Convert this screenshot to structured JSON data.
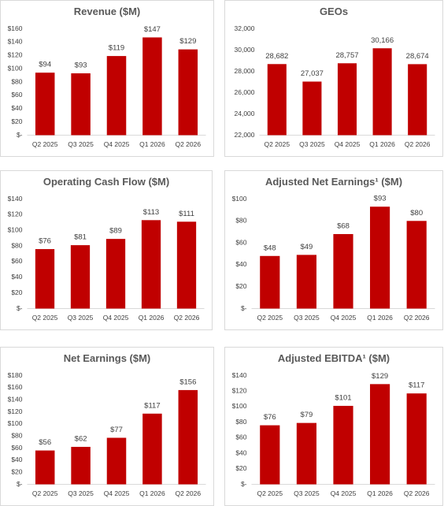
{
  "chart_data": [
    {
      "type": "bar",
      "title": "Revenue ($M)",
      "color": "#c00000",
      "categories": [
        "Q2 2025",
        "Q3 2025",
        "Q4 2025",
        "Q1 2026",
        "Q2 2026"
      ],
      "values": [
        94,
        93,
        119,
        147,
        129
      ],
      "value_labels": [
        "$94",
        "$93",
        "$119",
        "$147",
        "$129"
      ],
      "ylim": [
        0,
        160
      ],
      "yticks": [
        {
          "value": 0,
          "label": "$-"
        },
        {
          "value": 20,
          "label": "$20"
        },
        {
          "value": 40,
          "label": "$40"
        },
        {
          "value": 60,
          "label": "$60"
        },
        {
          "value": 80,
          "label": "$80"
        },
        {
          "value": 100,
          "label": "$100"
        },
        {
          "value": 120,
          "label": "$120"
        },
        {
          "value": 140,
          "label": "$140"
        },
        {
          "value": 160,
          "label": "$160"
        }
      ]
    },
    {
      "type": "bar",
      "title": "GEOs",
      "color": "#c00000",
      "categories": [
        "Q2 2025",
        "Q3 2025",
        "Q4 2025",
        "Q1 2026",
        "Q2 2026"
      ],
      "values": [
        28682,
        27037,
        28757,
        30166,
        28674
      ],
      "value_labels": [
        "28,682",
        "27,037",
        "28,757",
        "30,166",
        "28,674"
      ],
      "ylim": [
        22000,
        32000
      ],
      "yticks": [
        {
          "value": 22000,
          "label": "22,000"
        },
        {
          "value": 24000,
          "label": "24,000"
        },
        {
          "value": 26000,
          "label": "26,000"
        },
        {
          "value": 28000,
          "label": "28,000"
        },
        {
          "value": 30000,
          "label": "30,000"
        },
        {
          "value": 32000,
          "label": "32,000"
        }
      ]
    },
    {
      "type": "bar",
      "title": "Operating Cash Flow ($M)",
      "color": "#c00000",
      "categories": [
        "Q2 2025",
        "Q3 2025",
        "Q4 2025",
        "Q1 2026",
        "Q2 2026"
      ],
      "values": [
        76,
        81,
        89,
        113,
        111
      ],
      "value_labels": [
        "$76",
        "$81",
        "$89",
        "$113",
        "$111"
      ],
      "ylim": [
        0,
        140
      ],
      "yticks": [
        {
          "value": 0,
          "label": "$-"
        },
        {
          "value": 20,
          "label": "$20"
        },
        {
          "value": 40,
          "label": "$40"
        },
        {
          "value": 60,
          "label": "$60"
        },
        {
          "value": 80,
          "label": "$80"
        },
        {
          "value": 100,
          "label": "$100"
        },
        {
          "value": 120,
          "label": "$120"
        },
        {
          "value": 140,
          "label": "$140"
        }
      ]
    },
    {
      "type": "bar",
      "title": "Adjusted Net Earnings¹ ($M)",
      "color": "#c00000",
      "categories": [
        "Q2 2025",
        "Q3 2025",
        "Q4 2025",
        "Q1 2026",
        "Q2 2026"
      ],
      "values": [
        48,
        49,
        68,
        93,
        80
      ],
      "value_labels": [
        "$48",
        "$49",
        "$68",
        "$93",
        "$80"
      ],
      "ylim": [
        0,
        100
      ],
      "yticks": [
        {
          "value": 0,
          "label": "$-"
        },
        {
          "value": 20,
          "label": "$20"
        },
        {
          "value": 40,
          "label": "$40"
        },
        {
          "value": 60,
          "label": "$60"
        },
        {
          "value": 80,
          "label": "$80"
        },
        {
          "value": 100,
          "label": "$100"
        }
      ]
    },
    {
      "type": "bar",
      "title": "Net Earnings ($M)",
      "color": "#c00000",
      "categories": [
        "Q2 2025",
        "Q3 2025",
        "Q4 2025",
        "Q1 2026",
        "Q2 2026"
      ],
      "values": [
        56,
        62,
        77,
        117,
        156
      ],
      "value_labels": [
        "$56",
        "$62",
        "$77",
        "$117",
        "$156"
      ],
      "ylim": [
        0,
        180
      ],
      "yticks": [
        {
          "value": 0,
          "label": "$-"
        },
        {
          "value": 20,
          "label": "$20"
        },
        {
          "value": 40,
          "label": "$40"
        },
        {
          "value": 60,
          "label": "$60"
        },
        {
          "value": 80,
          "label": "$80"
        },
        {
          "value": 100,
          "label": "$100"
        },
        {
          "value": 120,
          "label": "$120"
        },
        {
          "value": 140,
          "label": "$140"
        },
        {
          "value": 160,
          "label": "$160"
        },
        {
          "value": 180,
          "label": "$180"
        }
      ]
    },
    {
      "type": "bar",
      "title": "Adjusted EBITDA¹ ($M)",
      "color": "#c00000",
      "categories": [
        "Q2 2025",
        "Q3 2025",
        "Q4 2025",
        "Q1 2026",
        "Q2 2026"
      ],
      "values": [
        76,
        79,
        101,
        129,
        117
      ],
      "value_labels": [
        "$76",
        "$79",
        "$101",
        "$129",
        "$117"
      ],
      "ylim": [
        0,
        140
      ],
      "yticks": [
        {
          "value": 0,
          "label": "$-"
        },
        {
          "value": 20,
          "label": "$20"
        },
        {
          "value": 40,
          "label": "$40"
        },
        {
          "value": 60,
          "label": "$60"
        },
        {
          "value": 80,
          "label": "$80"
        },
        {
          "value": 100,
          "label": "$100"
        },
        {
          "value": 120,
          "label": "$120"
        },
        {
          "value": 140,
          "label": "$140"
        }
      ]
    }
  ]
}
